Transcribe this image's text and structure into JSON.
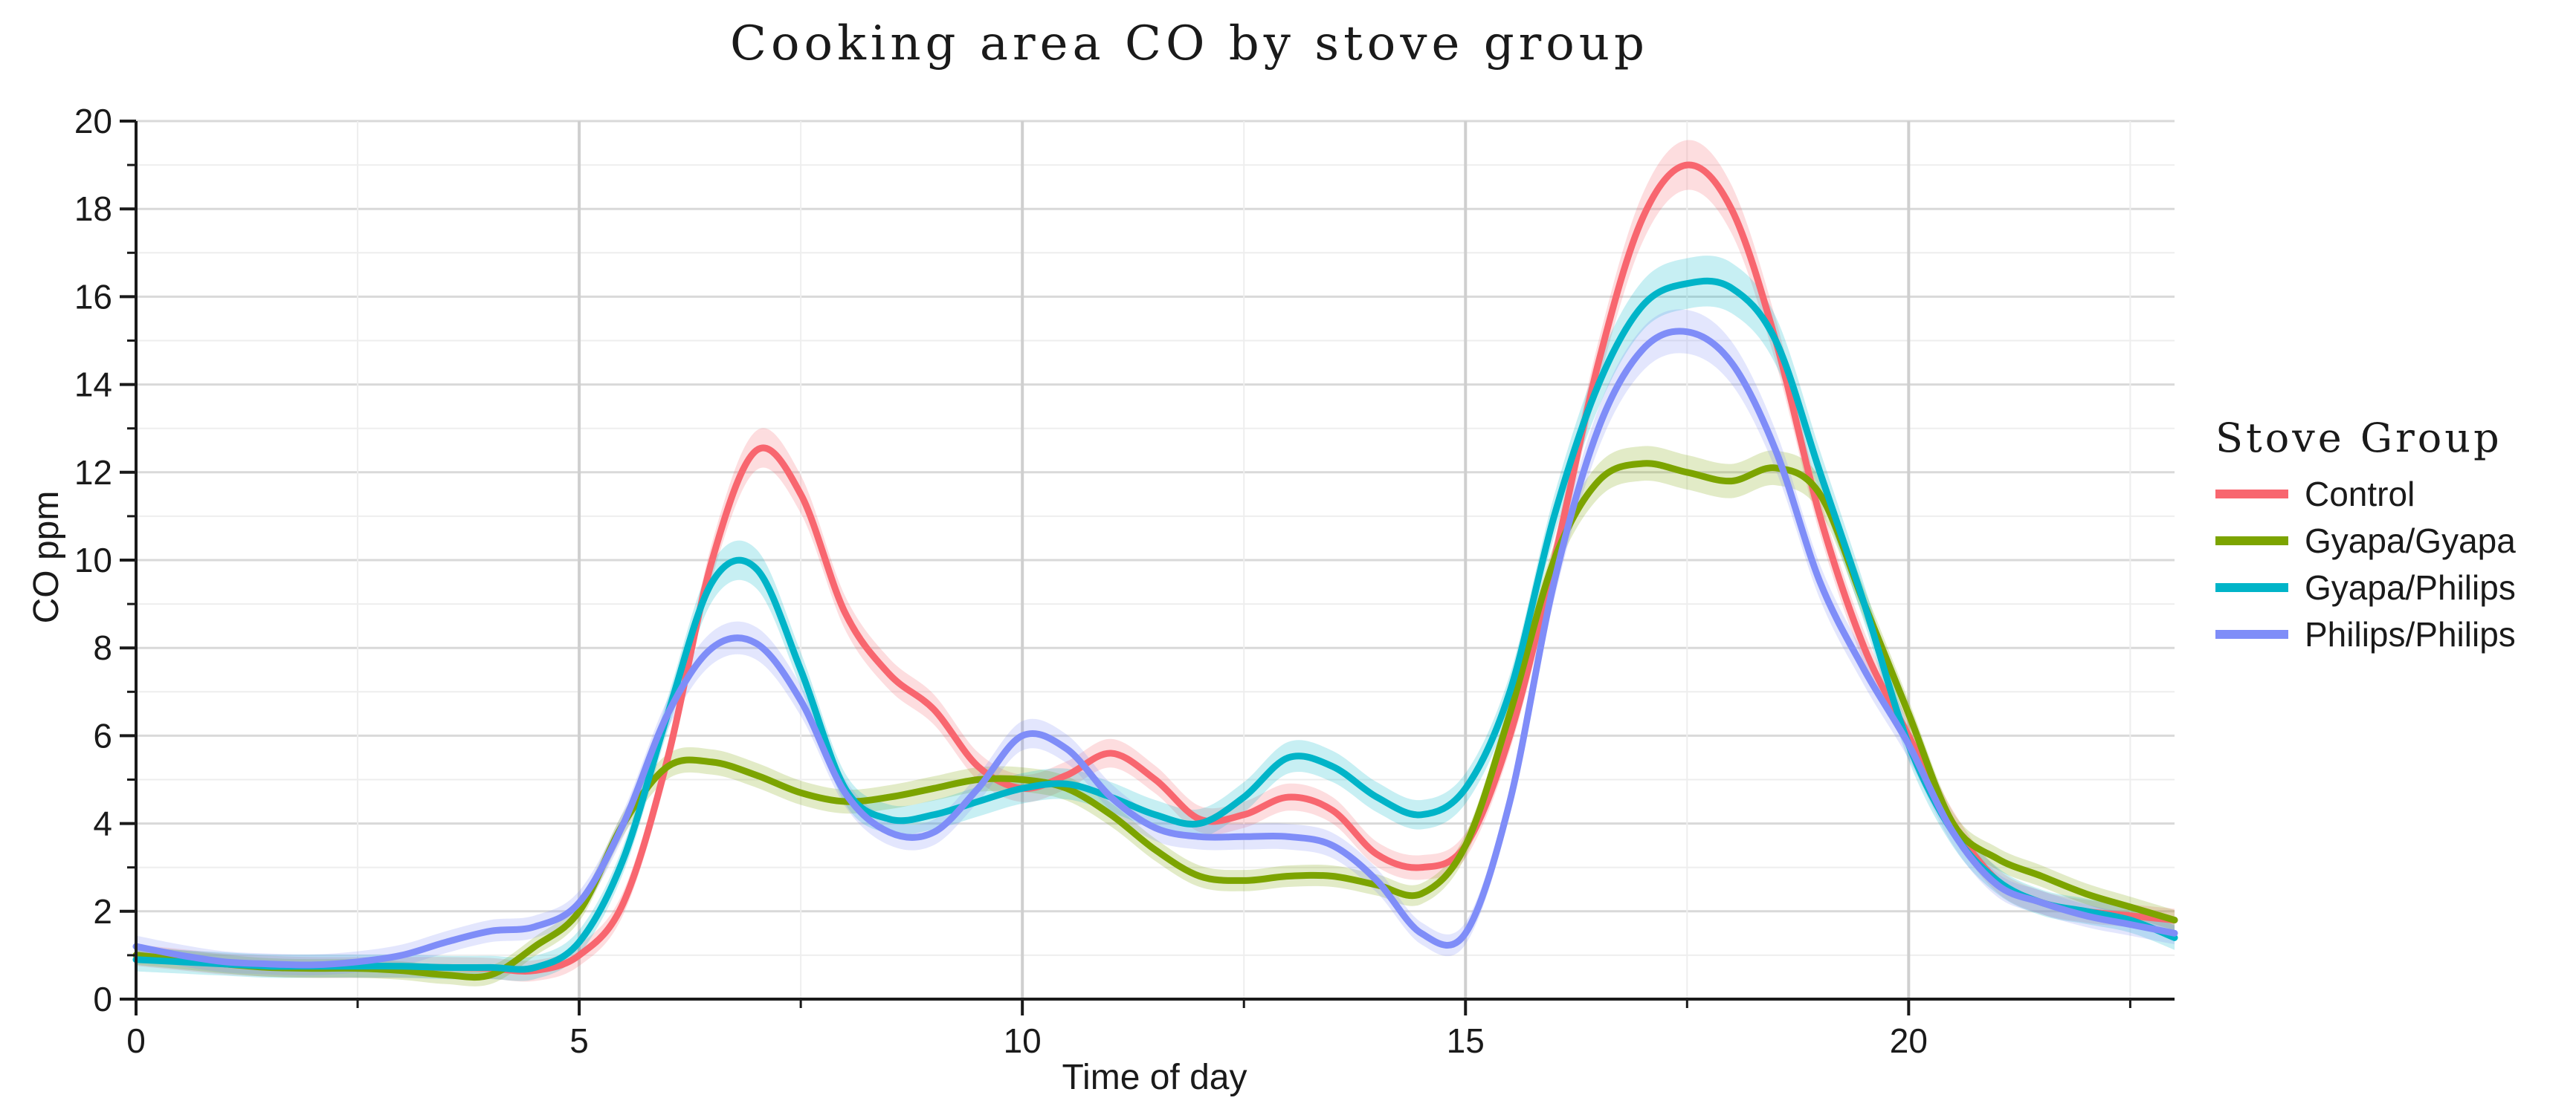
{
  "chart_data": {
    "type": "line",
    "title": "Cooking area CO by stove group",
    "xlabel": "Time of day",
    "ylabel": "CO ppm",
    "xlim": [
      0,
      23
    ],
    "ylim": [
      0,
      20
    ],
    "xticks": [
      0,
      5,
      10,
      15,
      20
    ],
    "yticks": [
      0,
      2,
      4,
      6,
      8,
      10,
      12,
      14,
      16,
      18,
      20
    ],
    "grid": true,
    "legend": {
      "title": "Stove Group",
      "position": "right"
    },
    "x": [
      0,
      0.5,
      1,
      1.5,
      2,
      2.5,
      3,
      3.5,
      4,
      4.5,
      5,
      5.5,
      6,
      6.5,
      7,
      7.5,
      8,
      8.5,
      9,
      9.5,
      10,
      10.5,
      11,
      11.5,
      12,
      12.5,
      13,
      13.5,
      14,
      14.5,
      15,
      15.5,
      16,
      16.5,
      17,
      17.5,
      18,
      18.5,
      19,
      19.5,
      20,
      20.5,
      21,
      21.5,
      22,
      22.5,
      23
    ],
    "series": [
      {
        "name": "Control",
        "color": "#f8666f",
        "values": [
          1.0,
          0.9,
          0.8,
          0.75,
          0.72,
          0.72,
          0.72,
          0.72,
          0.7,
          0.65,
          1.0,
          2.2,
          5.5,
          10.0,
          12.5,
          11.5,
          8.8,
          7.4,
          6.6,
          5.3,
          4.8,
          5.1,
          5.6,
          5.0,
          4.1,
          4.2,
          4.6,
          4.3,
          3.3,
          3.0,
          3.5,
          6.0,
          10.0,
          14.5,
          17.8,
          19.0,
          18.0,
          15.0,
          11.0,
          8.0,
          6.0,
          4.0,
          2.7,
          2.2,
          2.0,
          1.9,
          1.8
        ],
        "band": 0.45
      },
      {
        "name": "Gyapa/Gyapa",
        "color": "#7ca400",
        "values": [
          1.0,
          0.9,
          0.8,
          0.72,
          0.7,
          0.7,
          0.65,
          0.55,
          0.55,
          1.2,
          2.0,
          4.0,
          5.3,
          5.4,
          5.1,
          4.7,
          4.5,
          4.6,
          4.8,
          5.0,
          5.0,
          4.8,
          4.2,
          3.4,
          2.8,
          2.7,
          2.8,
          2.8,
          2.6,
          2.4,
          3.5,
          6.5,
          10.0,
          11.8,
          12.2,
          12.0,
          11.8,
          12.1,
          11.5,
          9.0,
          6.5,
          4.0,
          3.2,
          2.8,
          2.4,
          2.1,
          1.8
        ],
        "band": 0.4
      },
      {
        "name": "Gyapa/Philips",
        "color": "#00b4c8",
        "values": [
          0.9,
          0.85,
          0.8,
          0.75,
          0.75,
          0.75,
          0.75,
          0.72,
          0.72,
          0.72,
          1.3,
          3.2,
          6.5,
          9.5,
          9.8,
          7.5,
          4.8,
          4.1,
          4.2,
          4.5,
          4.8,
          4.9,
          4.6,
          4.2,
          4.0,
          4.6,
          5.5,
          5.3,
          4.6,
          4.2,
          4.8,
          7.0,
          11.0,
          14.0,
          15.8,
          16.3,
          16.2,
          15.0,
          12.0,
          9.0,
          5.8,
          3.8,
          2.7,
          2.2,
          2.0,
          1.8,
          1.4
        ],
        "band": 0.5
      },
      {
        "name": "Philips/Philips",
        "color": "#7f8df8",
        "values": [
          1.2,
          1.0,
          0.85,
          0.8,
          0.78,
          0.85,
          1.0,
          1.3,
          1.55,
          1.65,
          2.2,
          4.0,
          6.5,
          8.0,
          8.1,
          6.8,
          4.7,
          3.8,
          3.8,
          4.8,
          6.0,
          5.7,
          4.6,
          3.9,
          3.7,
          3.7,
          3.7,
          3.5,
          2.7,
          1.5,
          1.5,
          4.5,
          9.5,
          13.0,
          14.8,
          15.2,
          14.5,
          12.5,
          9.5,
          7.5,
          5.8,
          3.8,
          2.6,
          2.2,
          1.9,
          1.7,
          1.5
        ],
        "band": 0.45
      }
    ]
  }
}
